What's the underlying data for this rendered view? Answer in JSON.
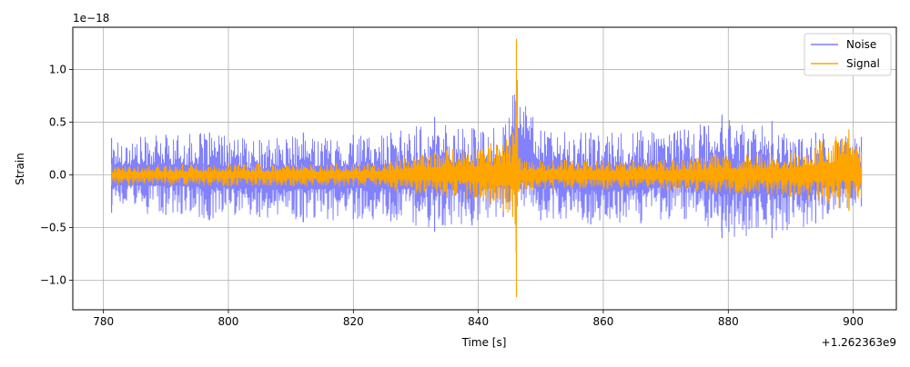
{
  "chart_data": {
    "type": "line",
    "xlabel": "Time [s]",
    "ylabel": "Strain",
    "y_scale_label": "1e−18",
    "x_offset_label": "+1.262363e9",
    "x_offset": 1262363000,
    "xlim": [
      775.1,
      906.9
    ],
    "ylim": [
      -1.28,
      1.4
    ],
    "y_multiplier": 1e-18,
    "x_ticks": [
      780,
      800,
      820,
      840,
      860,
      880,
      900
    ],
    "x_tick_labels": [
      "780",
      "800",
      "820",
      "840",
      "860",
      "880",
      "900"
    ],
    "y_ticks": [
      -1.0,
      -0.5,
      0.0,
      0.5,
      1.0
    ],
    "y_tick_labels": [
      "−1.0",
      "−0.5",
      "0.0",
      "0.5",
      "1.0"
    ],
    "grid": true,
    "legend_position": "top-right",
    "series": [
      {
        "name": "Noise",
        "color": "#7b7bff",
        "x_range": [
          781.3,
          901.3
        ],
        "envelope": [
          {
            "x": 781.3,
            "min": -0.36,
            "max": 0.35
          },
          {
            "x": 790.0,
            "min": -0.38,
            "max": 0.38
          },
          {
            "x": 797.0,
            "min": -0.43,
            "max": 0.4
          },
          {
            "x": 805.0,
            "min": -0.4,
            "max": 0.33
          },
          {
            "x": 812.0,
            "min": -0.45,
            "max": 0.4
          },
          {
            "x": 820.0,
            "min": -0.42,
            "max": 0.38
          },
          {
            "x": 826.0,
            "min": -0.44,
            "max": 0.4
          },
          {
            "x": 833.0,
            "min": -0.54,
            "max": 0.55
          },
          {
            "x": 839.0,
            "min": -0.48,
            "max": 0.44
          },
          {
            "x": 844.0,
            "min": -0.4,
            "max": 0.45
          },
          {
            "x": 846.2,
            "min": -0.3,
            "max": 0.9
          },
          {
            "x": 850.0,
            "min": -0.43,
            "max": 0.42
          },
          {
            "x": 858.0,
            "min": -0.47,
            "max": 0.4
          },
          {
            "x": 866.0,
            "min": -0.46,
            "max": 0.42
          },
          {
            "x": 873.0,
            "min": -0.42,
            "max": 0.43
          },
          {
            "x": 879.0,
            "min": -0.6,
            "max": 0.57
          },
          {
            "x": 887.0,
            "min": -0.6,
            "max": 0.51
          },
          {
            "x": 894.0,
            "min": -0.46,
            "max": 0.4
          },
          {
            "x": 901.3,
            "min": -0.3,
            "max": 0.36
          }
        ]
      },
      {
        "name": "Signal",
        "color": "#ffa500",
        "x_range": [
          781.3,
          901.3
        ],
        "envelope": [
          {
            "x": 781.3,
            "min": -0.1,
            "max": 0.1
          },
          {
            "x": 800.0,
            "min": -0.11,
            "max": 0.11
          },
          {
            "x": 820.0,
            "min": -0.11,
            "max": 0.11
          },
          {
            "x": 826.0,
            "min": -0.12,
            "max": 0.12
          },
          {
            "x": 827.0,
            "min": -0.17,
            "max": 0.18
          },
          {
            "x": 835.0,
            "min": -0.22,
            "max": 0.24
          },
          {
            "x": 842.0,
            "min": -0.28,
            "max": 0.3
          },
          {
            "x": 845.5,
            "min": -0.4,
            "max": 0.4
          },
          {
            "x": 846.1,
            "min": -1.16,
            "max": 1.29
          },
          {
            "x": 846.5,
            "min": -0.16,
            "max": 0.16
          },
          {
            "x": 860.0,
            "min": -0.14,
            "max": 0.14
          },
          {
            "x": 875.0,
            "min": -0.16,
            "max": 0.16
          },
          {
            "x": 878.0,
            "min": -0.18,
            "max": 0.2
          },
          {
            "x": 890.0,
            "min": -0.21,
            "max": 0.21
          },
          {
            "x": 899.3,
            "min": -0.34,
            "max": 0.43
          },
          {
            "x": 901.3,
            "min": -0.22,
            "max": 0.22
          }
        ]
      }
    ]
  }
}
